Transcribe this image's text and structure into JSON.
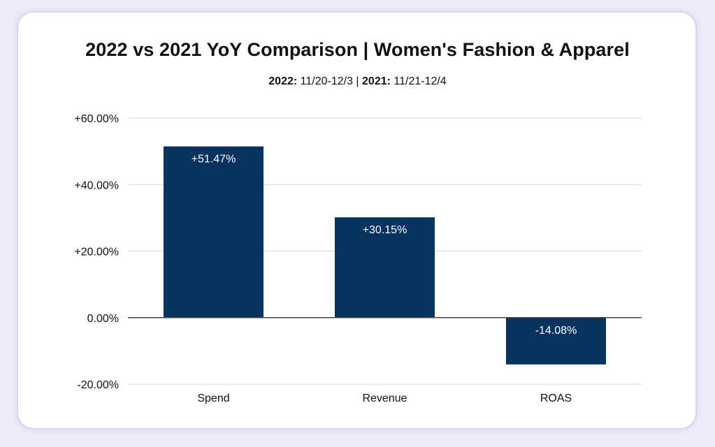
{
  "subtitle": {
    "label_2022": "2022:",
    "range_2022": " 11/20-12/3 | ",
    "label_2021": "2021:",
    "range_2021": " 11/21-12/4"
  },
  "colors": {
    "bar": "#08335f",
    "grid": "#d6d6d6",
    "zero_line": "#444444",
    "bar_label": "#ffffff",
    "text": "#111111"
  },
  "chart_data": {
    "type": "bar",
    "title": "2022 vs 2021 YoY Comparison | Women's Fashion & Apparel",
    "categories": [
      "Spend",
      "Revenue",
      "ROAS"
    ],
    "values": [
      51.47,
      30.15,
      -14.08
    ],
    "data_labels": [
      "+51.47%",
      "+30.15%",
      "-14.08%"
    ],
    "ylim": [
      -20,
      60
    ],
    "yticks": [
      60,
      40,
      20,
      0,
      -20
    ],
    "ytick_labels": [
      "+60.00%",
      "+40.00%",
      "+20.00%",
      "0.00%",
      "-20.00%"
    ],
    "xlabel": "",
    "ylabel": "",
    "grid": true,
    "legend": "none"
  }
}
